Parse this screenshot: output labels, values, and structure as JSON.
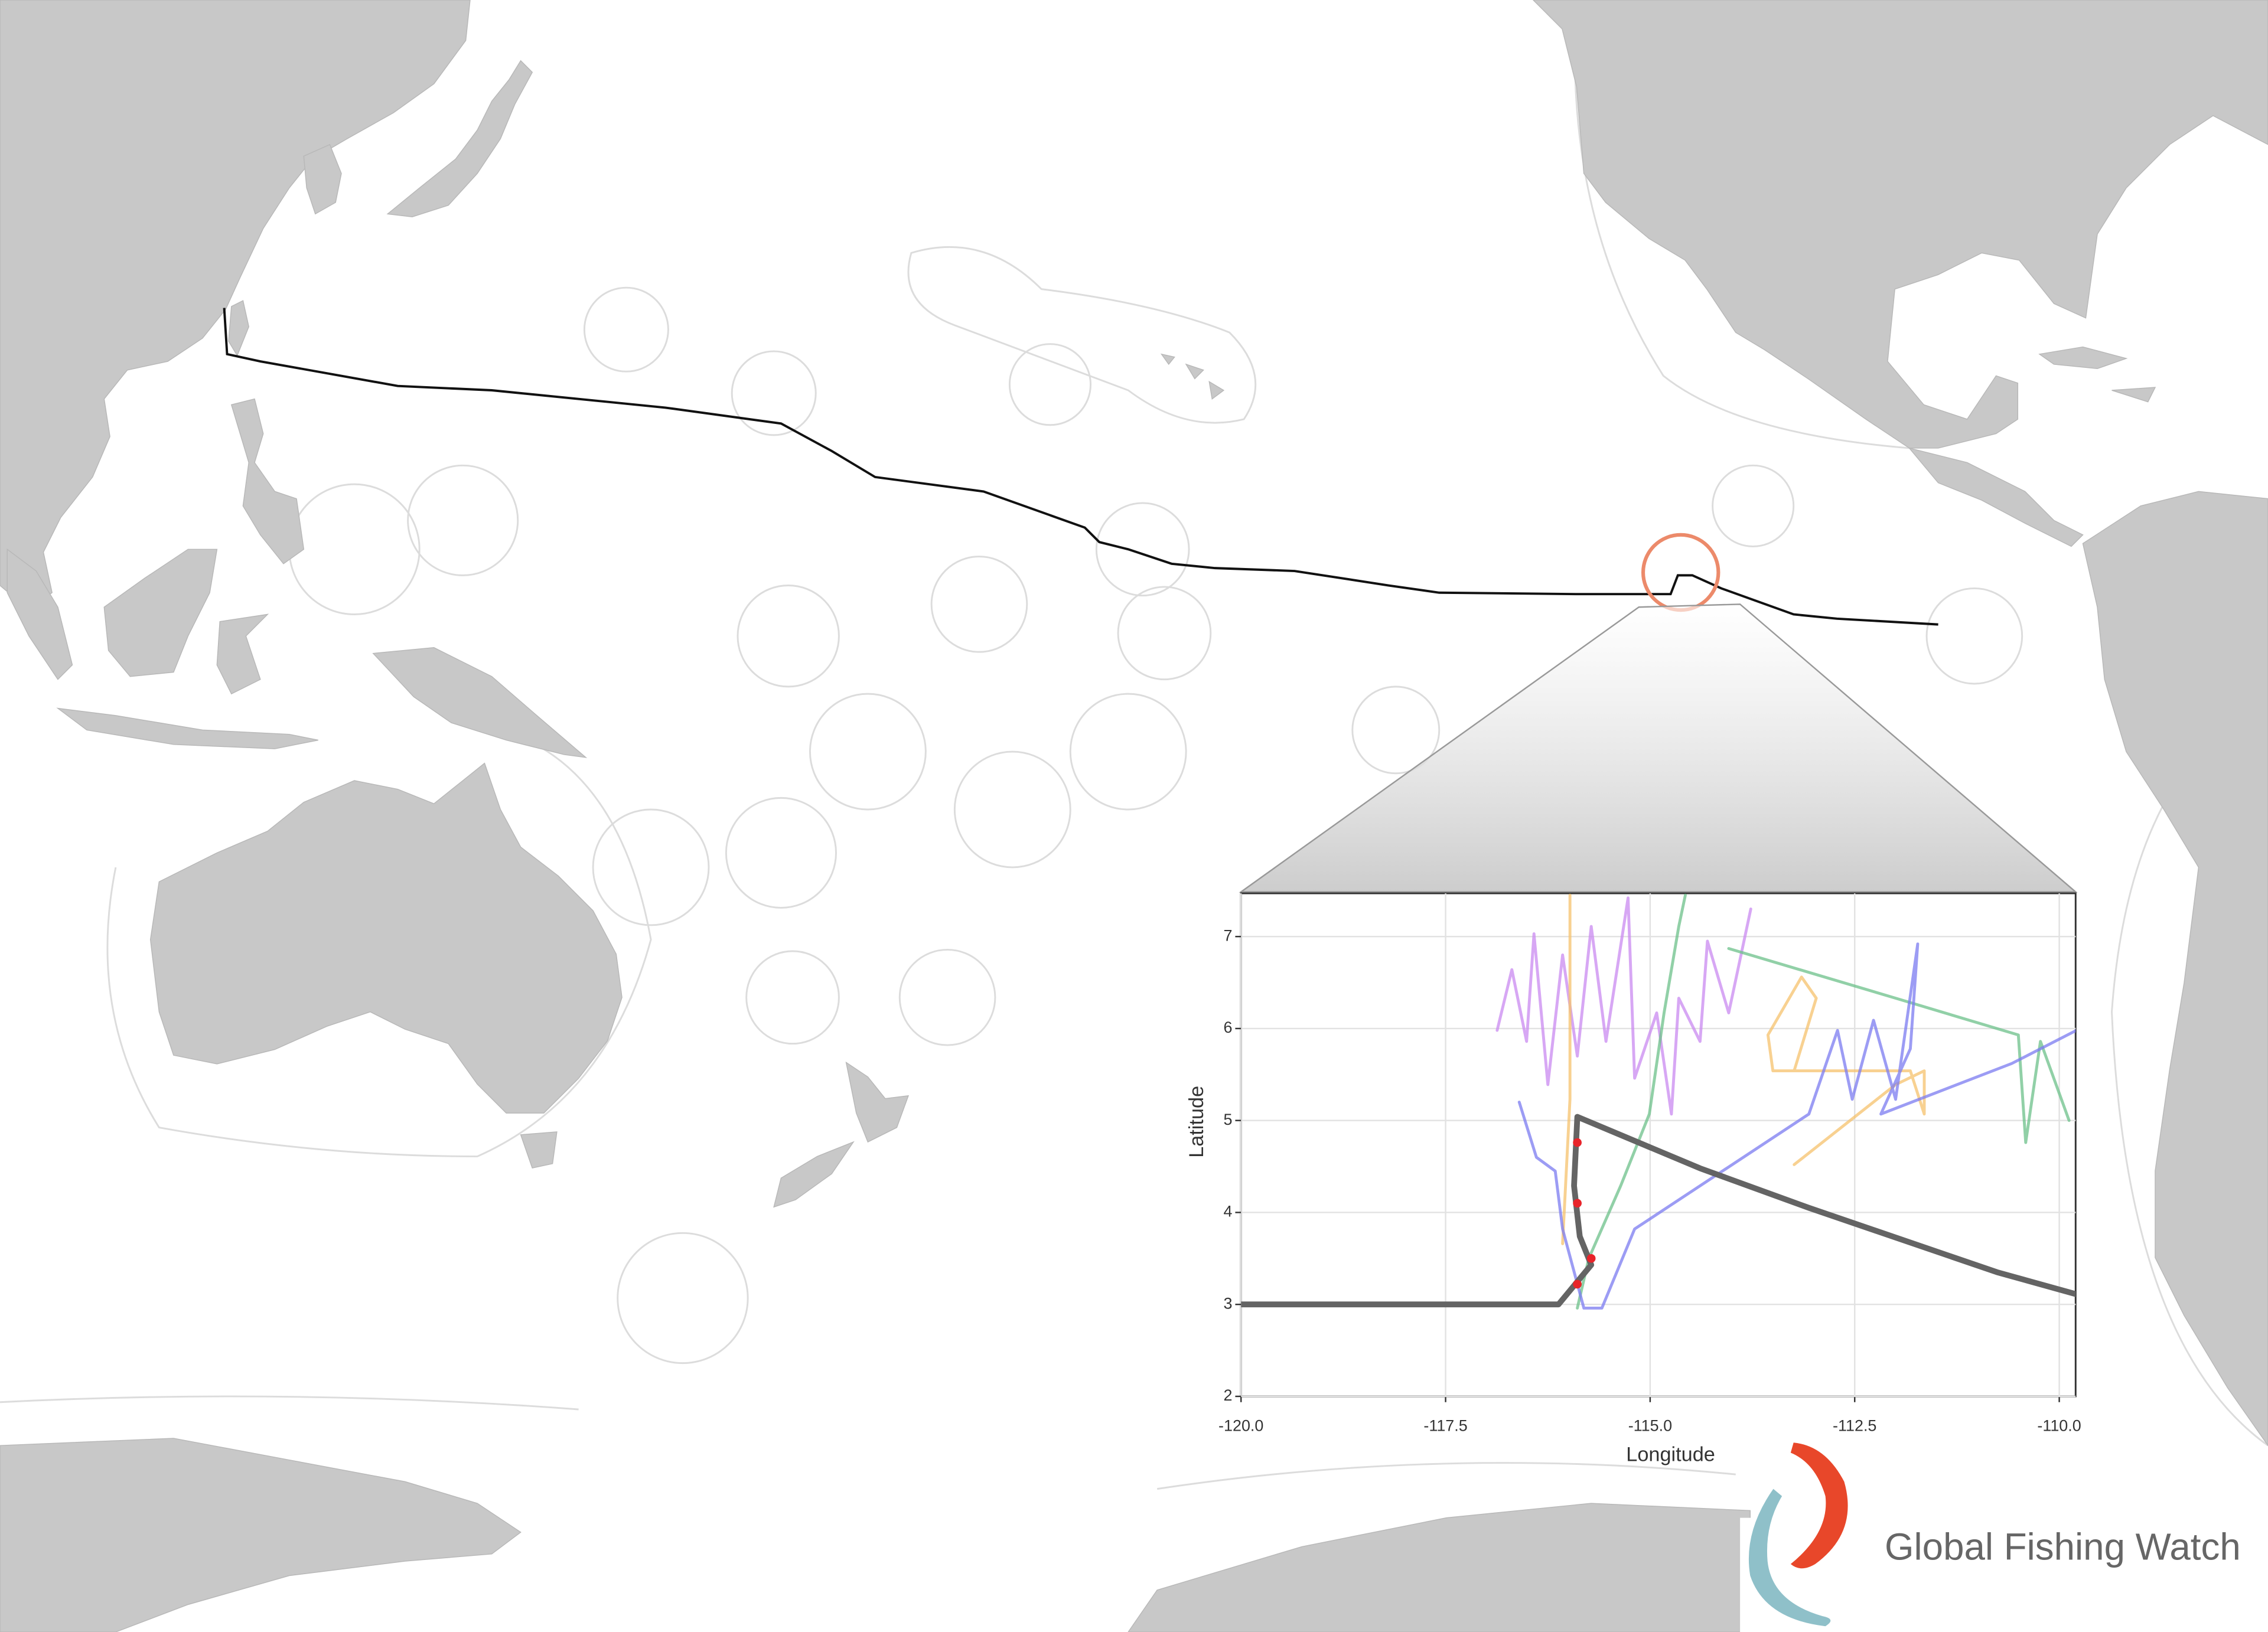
{
  "chart_data": {
    "type": "line",
    "x_label": "Longitude",
    "y_label": "Latitude",
    "xlim": [
      -120,
      -109.8
    ],
    "ylim": [
      2,
      7.47
    ],
    "xticks": [
      {
        "value": -120,
        "label": "-120.0"
      },
      -117.5,
      {
        "value": -115,
        "label": "-115.0"
      },
      -112.5,
      {
        "value": -110,
        "label": "-110.0"
      }
    ],
    "yticks": [
      2,
      3,
      4,
      5,
      6,
      7
    ],
    "grid": true,
    "series": [
      {
        "color": "#c98af0",
        "x": [
          -116.87,
          -116.69,
          -116.51,
          -116.42,
          -116.25,
          -116.07,
          -115.89,
          -115.72,
          -115.54,
          -115.27,
          -115.19,
          -114.92,
          -114.74,
          -114.65,
          -114.39,
          -114.3,
          -114.04,
          -113.77
        ],
        "values": [
          5.98,
          6.64,
          5.86,
          7.03,
          5.39,
          6.8,
          5.7,
          7.11,
          5.86,
          7.42,
          5.46,
          6.17,
          5.07,
          6.33,
          5.86,
          6.95,
          6.17,
          7.3
        ]
      },
      {
        "color": "#6cc08a",
        "x": [
          -115.89,
          -115.75,
          -115.36,
          -115.01,
          -114.83,
          -114.65,
          -114.57,
          null,
          -114.04,
          -112.0,
          -110.5,
          -110.41,
          -110.23,
          -109.88
        ],
        "values": [
          2.96,
          3.5,
          4.29,
          5.07,
          6.17,
          7.11,
          7.45,
          null,
          6.87,
          6.33,
          5.93,
          4.76,
          5.86,
          5.0
        ]
      },
      {
        "color": "#f5c16c",
        "x": [
          -115.98,
          -115.98,
          -116.07,
          null,
          -113.24,
          -112.0,
          -111.65,
          -111.65,
          -111.82,
          -113.5,
          -113.56,
          -113.15,
          -112.97,
          -113.24
        ],
        "values": [
          7.45,
          5.23,
          3.66,
          null,
          4.52,
          5.39,
          5.54,
          5.07,
          5.54,
          5.54,
          5.93,
          6.56,
          6.33,
          5.54
        ]
      },
      {
        "color": "#7b7bf0",
        "x": [
          -116.6,
          -116.39,
          -116.16,
          -116.07,
          -115.81,
          -115.59,
          -115.19,
          -113.06,
          -112.71,
          -112.53,
          -112.27,
          -112.0,
          -111.73,
          -111.82,
          -112.18,
          -110.58,
          -109.79
        ],
        "values": [
          5.2,
          4.6,
          4.45,
          3.82,
          2.96,
          2.96,
          3.82,
          5.07,
          5.98,
          5.23,
          6.09,
          5.23,
          6.92,
          5.78,
          5.07,
          5.62,
          5.98
        ]
      },
      {
        "color": "#646464",
        "width": 4,
        "x": [
          -120,
          -116.12,
          -115.72,
          -115.86,
          -115.93,
          -115.89,
          -114.39,
          -113.06,
          -110.76,
          -109.79
        ],
        "values": [
          3.0,
          3.0,
          3.43,
          3.74,
          4.29,
          5.04,
          4.48,
          4.05,
          3.35,
          3.11
        ]
      },
      {
        "color": "#e8242a",
        "mode": "markers",
        "x": [
          -115.89,
          -115.89,
          -115.72,
          -115.89
        ],
        "values": [
          4.76,
          4.1,
          3.5,
          3.22
        ]
      }
    ]
  },
  "logo": {
    "text": "Global Fishing Watch"
  }
}
